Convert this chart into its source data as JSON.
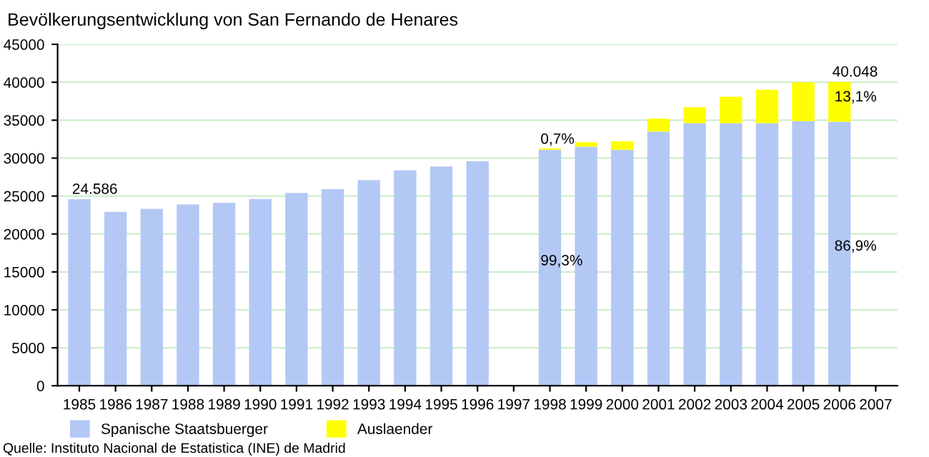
{
  "chart_data": {
    "type": "bar",
    "title": "Bevölkerungsentwicklung von San Fernando de Henares",
    "categories": [
      "1985",
      "1986",
      "1987",
      "1988",
      "1989",
      "1990",
      "1991",
      "1992",
      "1993",
      "1994",
      "1995",
      "1996",
      "1997",
      "1998",
      "1999",
      "2000",
      "2001",
      "2002",
      "2003",
      "2004",
      "2005",
      "2006",
      "2007"
    ],
    "stacked": true,
    "series": [
      {
        "name": "Spanische Staatsbuerger",
        "color": "#b3c8f5",
        "values": [
          24586,
          22900,
          23300,
          23900,
          24100,
          24600,
          25400,
          25900,
          27100,
          28400,
          28900,
          29600,
          null,
          31100,
          31500,
          31100,
          33500,
          34600,
          34600,
          34600,
          34900,
          34802,
          null
        ]
      },
      {
        "name": "Auslaender",
        "color": "#ffff00",
        "values": [
          null,
          null,
          null,
          null,
          null,
          null,
          null,
          null,
          null,
          null,
          null,
          null,
          null,
          200,
          600,
          1100,
          1700,
          2100,
          3500,
          4400,
          5100,
          5246,
          null
        ]
      }
    ],
    "ylim": [
      0,
      45000
    ],
    "yticks": [
      0,
      5000,
      10000,
      15000,
      20000,
      25000,
      30000,
      35000,
      40000,
      45000
    ],
    "grid": "y",
    "legend": "bottom",
    "totals": [
      "24.586",
      null,
      null,
      null,
      null,
      null,
      null,
      null,
      null,
      null,
      null,
      null,
      null,
      null,
      null,
      null,
      null,
      null,
      null,
      null,
      null,
      "40.048",
      null
    ],
    "annotations": [
      "0,7%",
      "99,3%",
      "13,1%",
      "86,9%",
      "Quelle: Instituto Nacional de Estatistica (INE) de Madrid"
    ]
  }
}
